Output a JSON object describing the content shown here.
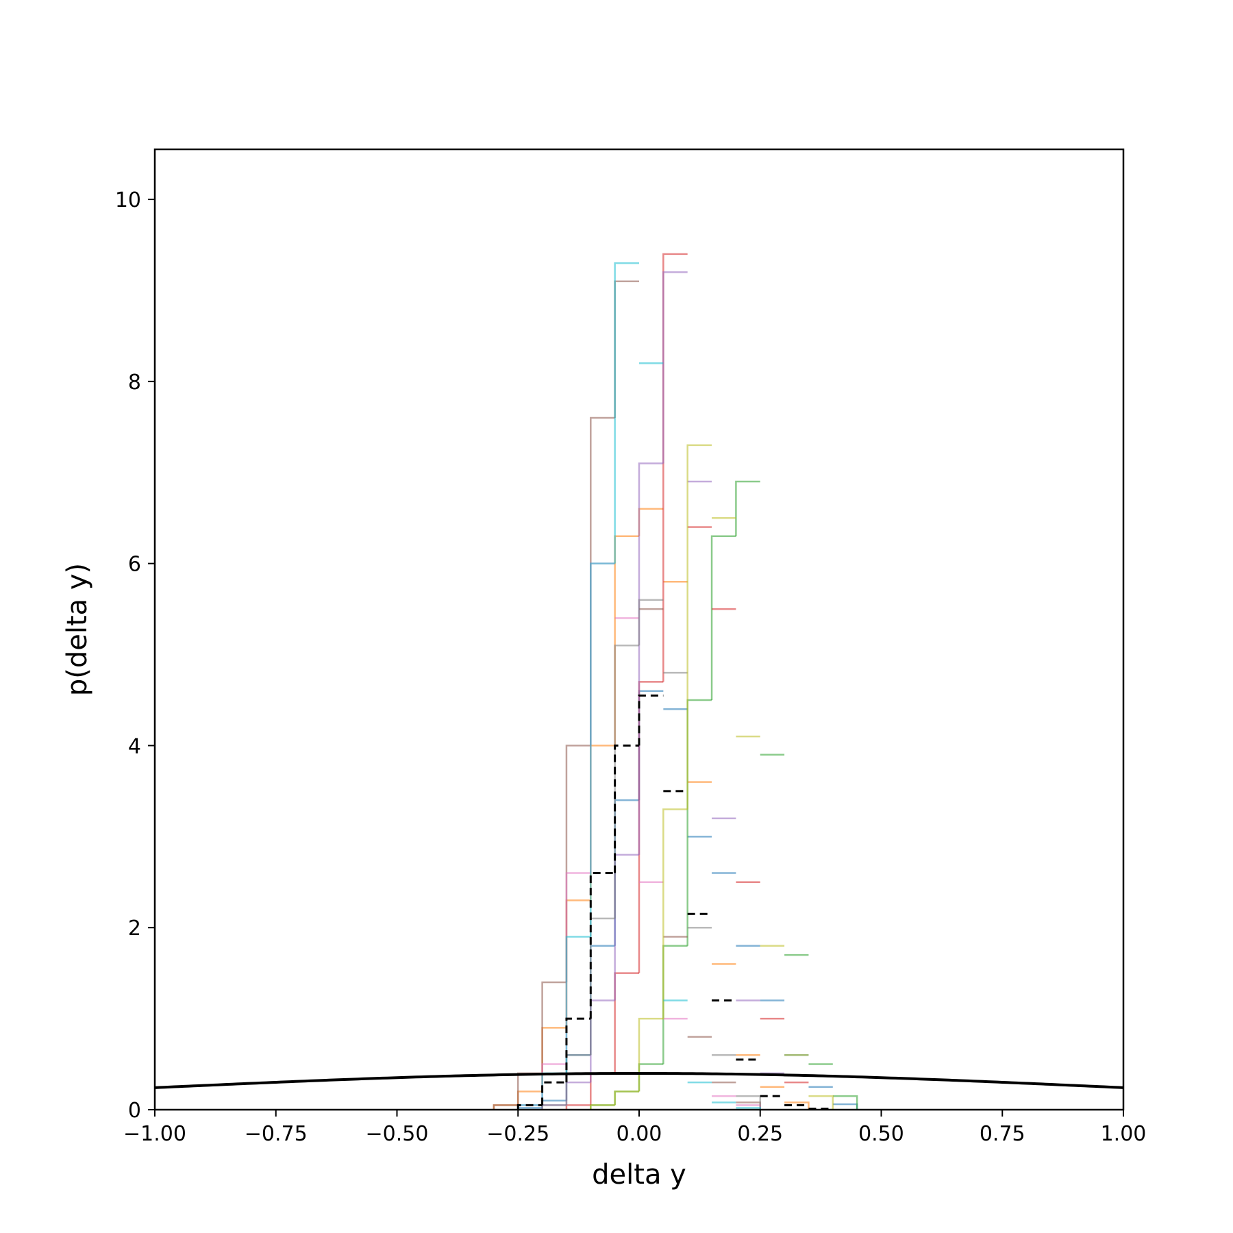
{
  "chart_data": {
    "type": "histogram",
    "title": "",
    "xlabel": "delta y",
    "ylabel": "p(delta y)",
    "xlim": [
      -1.0,
      1.0
    ],
    "ylim": [
      0,
      10.55
    ],
    "xticks": [
      -1.0,
      -0.75,
      -0.5,
      -0.25,
      0.0,
      0.25,
      0.5,
      0.75,
      1.0
    ],
    "xtick_labels": [
      "−1.00",
      "−0.75",
      "−0.50",
      "−0.25",
      "0.00",
      "0.25",
      "0.50",
      "0.75",
      "1.00"
    ],
    "yticks": [
      0,
      2,
      4,
      6,
      8,
      10
    ],
    "ytick_labels": [
      "0",
      "2",
      "4",
      "6",
      "8",
      "10"
    ],
    "grid": false,
    "legend": false,
    "series": [
      {
        "color": "#1f77b4",
        "edges": [
          -0.25,
          -0.2,
          -0.15,
          -0.1,
          -0.05,
          0.0,
          0.05,
          0.1,
          0.15,
          0.2,
          0.25,
          0.3,
          0.35,
          0.4,
          0.45
        ],
        "values": [
          0.02,
          0.1,
          0.6,
          1.8,
          3.4,
          4.6,
          4.4,
          3.0,
          2.6,
          1.8,
          1.2,
          0.6,
          0.25,
          0.06
        ]
      },
      {
        "color": "#ff7f0e",
        "edges": [
          -0.3,
          -0.25,
          -0.2,
          -0.15,
          -0.1,
          -0.05,
          0.0,
          0.05,
          0.1,
          0.15,
          0.2,
          0.25,
          0.3,
          0.35
        ],
        "values": [
          0.05,
          0.2,
          0.9,
          2.3,
          4.0,
          6.3,
          6.6,
          5.8,
          3.6,
          1.6,
          0.6,
          0.25,
          0.08
        ]
      },
      {
        "color": "#2ca02c",
        "edges": [
          -0.1,
          -0.05,
          0.0,
          0.05,
          0.1,
          0.15,
          0.2,
          0.25,
          0.3,
          0.35,
          0.4,
          0.45
        ],
        "values": [
          0.05,
          0.2,
          0.5,
          1.8,
          4.5,
          6.3,
          6.9,
          3.9,
          1.7,
          0.5,
          0.15
        ]
      },
      {
        "color": "#d62728",
        "edges": [
          -0.15,
          -0.1,
          -0.05,
          0.0,
          0.05,
          0.1,
          0.15,
          0.2,
          0.25,
          0.3,
          0.35
        ],
        "values": [
          0.05,
          0.4,
          1.5,
          4.7,
          9.4,
          6.4,
          5.5,
          2.5,
          1.0,
          0.3,
          0.05
        ]
      },
      {
        "color": "#9467bd",
        "edges": [
          -0.2,
          -0.15,
          -0.1,
          -0.05,
          0.0,
          0.05,
          0.1,
          0.15,
          0.2,
          0.25,
          0.3
        ],
        "values": [
          0.05,
          0.3,
          1.2,
          2.8,
          7.1,
          9.2,
          6.9,
          3.2,
          1.2,
          0.4,
          0.1
        ]
      },
      {
        "color": "#8c564b",
        "edges": [
          -0.3,
          -0.25,
          -0.2,
          -0.15,
          -0.1,
          -0.05,
          0.0,
          0.05,
          0.1,
          0.15,
          0.2,
          0.25
        ],
        "values": [
          0.05,
          0.4,
          1.4,
          4.0,
          7.6,
          9.1,
          5.5,
          1.9,
          0.8,
          0.3,
          0.08
        ]
      },
      {
        "color": "#e377c2",
        "edges": [
          -0.25,
          -0.2,
          -0.15,
          -0.1,
          -0.05,
          0.0,
          0.05,
          0.1,
          0.15,
          0.2,
          0.25
        ],
        "values": [
          0.05,
          0.5,
          2.6,
          6.0,
          5.4,
          2.5,
          1.0,
          0.4,
          0.15,
          0.05
        ]
      },
      {
        "color": "#7f7f7f",
        "edges": [
          -0.2,
          -0.15,
          -0.1,
          -0.05,
          0.0,
          0.05,
          0.1,
          0.15,
          0.2,
          0.25
        ],
        "values": [
          0.05,
          0.6,
          2.1,
          5.1,
          5.6,
          4.8,
          2.0,
          0.6,
          0.15
        ]
      },
      {
        "color": "#bcbd22",
        "edges": [
          -0.1,
          -0.05,
          0.0,
          0.05,
          0.1,
          0.15,
          0.2,
          0.25,
          0.3,
          0.35,
          0.4
        ],
        "values": [
          0.05,
          0.2,
          1.0,
          3.3,
          7.3,
          6.5,
          4.1,
          1.8,
          0.6,
          0.15
        ]
      },
      {
        "color": "#17becf",
        "edges": [
          -0.25,
          -0.2,
          -0.15,
          -0.1,
          -0.05,
          0.0,
          0.05,
          0.1,
          0.15,
          0.2,
          0.25
        ],
        "values": [
          0.05,
          0.4,
          1.9,
          6.0,
          9.3,
          8.2,
          1.2,
          0.3,
          0.08,
          0.02
        ]
      },
      {
        "color": "#000000",
        "dashed": true,
        "edges": [
          -0.25,
          -0.2,
          -0.15,
          -0.1,
          -0.05,
          0.0,
          0.05,
          0.1,
          0.15,
          0.2,
          0.25,
          0.3,
          0.35,
          0.4
        ],
        "values": [
          0.05,
          0.3,
          1.0,
          2.6,
          4.0,
          4.55,
          3.5,
          2.15,
          1.2,
          0.55,
          0.15,
          0.05,
          0.01
        ]
      }
    ],
    "curve": {
      "type": "normal_pdf",
      "mean": 0.0,
      "sigma": 1.0,
      "color": "#000000"
    }
  }
}
